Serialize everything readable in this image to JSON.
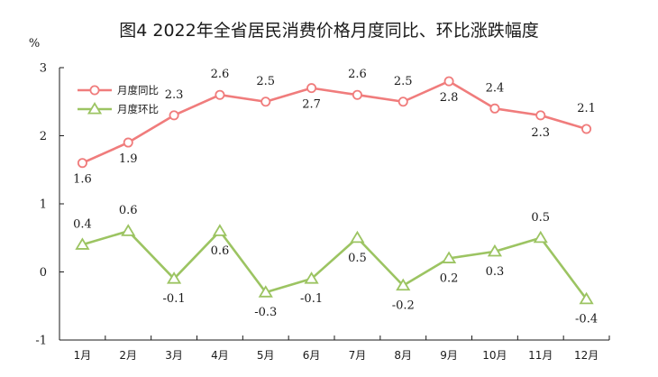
{
  "chart_data": {
    "type": "line",
    "title": "图4  2022年全省居民消费价格月度同比、环比涨跌幅度",
    "unit_label": "%",
    "xlabel": "",
    "ylabel": "",
    "categories": [
      "1月",
      "2月",
      "3月",
      "4月",
      "5月",
      "6月",
      "7月",
      "8月",
      "9月",
      "10月",
      "11月",
      "12月"
    ],
    "ylim": [
      -1,
      3
    ],
    "yticks": [
      -1,
      0,
      1,
      2,
      3
    ],
    "legend_position": "top-left",
    "grid": false,
    "series": [
      {
        "name": "月度同比",
        "color": "#f07c7c",
        "marker": "circle",
        "values": [
          1.6,
          1.9,
          2.3,
          2.6,
          2.5,
          2.7,
          2.6,
          2.5,
          2.8,
          2.4,
          2.3,
          2.1
        ],
        "labels": [
          "1.6",
          "1.9",
          "2.3",
          "2.6",
          "2.5",
          "2.7",
          "2.6",
          "2.5",
          "2.8",
          "2.4",
          "2.3",
          "2.1"
        ]
      },
      {
        "name": "月度环比",
        "color": "#9cc462",
        "marker": "triangle",
        "values": [
          0.4,
          0.6,
          -0.1,
          0.6,
          -0.3,
          -0.1,
          0.5,
          -0.2,
          0.2,
          0.3,
          0.5,
          -0.4
        ],
        "labels": [
          "0.4",
          "0.6",
          "-0.1",
          "0.6",
          "-0.3",
          "-0.1",
          "0.5",
          "-0.2",
          "0.2",
          "0.3",
          "0.5",
          "-0.4"
        ]
      }
    ]
  }
}
